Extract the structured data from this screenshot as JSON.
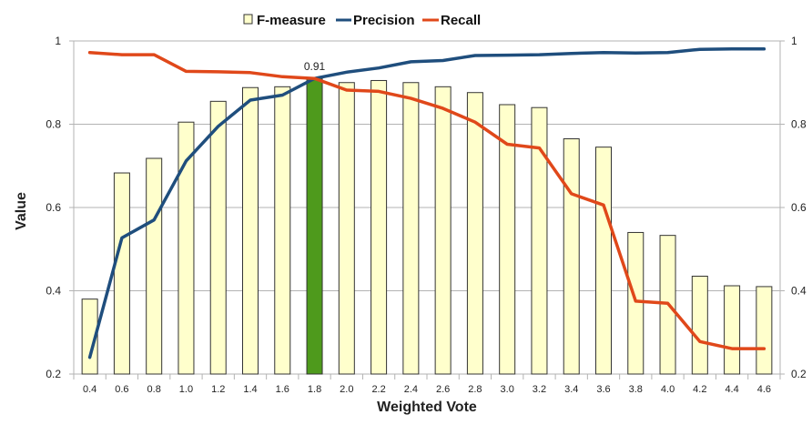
{
  "chart_data": {
    "type": "bar",
    "title": "",
    "xlabel": "Weighted Vote",
    "ylabel": "Value",
    "ylim": [
      0.2,
      1.0
    ],
    "y_ticks": [
      "0.2",
      "0.4",
      "0.6",
      "0.8",
      "1"
    ],
    "categories": [
      "0.4",
      "0.6",
      "0.8",
      "1.0",
      "1.2",
      "1.4",
      "1.6",
      "1.8",
      "2.0",
      "2.2",
      "2.4",
      "2.6",
      "2.8",
      "3.0",
      "3.2",
      "3.4",
      "3.6",
      "3.8",
      "4.0",
      "4.2",
      "4.4",
      "4.6"
    ],
    "series": [
      {
        "name": "F-measure",
        "kind": "bar",
        "color": "#ffffcc",
        "border": "#333333",
        "highlight_index": 7,
        "highlight_color": "#4e9a1c",
        "values": [
          0.38,
          0.683,
          0.718,
          0.805,
          0.855,
          0.888,
          0.89,
          0.91,
          0.9,
          0.905,
          0.9,
          0.89,
          0.876,
          0.847,
          0.84,
          0.765,
          0.745,
          0.54,
          0.533,
          0.435,
          0.412,
          0.41
        ]
      },
      {
        "name": "Precision",
        "kind": "line",
        "color": "#1f4e7d",
        "values": [
          0.24,
          0.527,
          0.57,
          0.712,
          0.795,
          0.858,
          0.87,
          0.91,
          0.925,
          0.935,
          0.95,
          0.953,
          0.965,
          0.966,
          0.967,
          0.97,
          0.972,
          0.971,
          0.972,
          0.98,
          0.981,
          0.981
        ]
      },
      {
        "name": "Recall",
        "kind": "line",
        "color": "#e0481a",
        "values": [
          0.972,
          0.967,
          0.967,
          0.927,
          0.926,
          0.924,
          0.914,
          0.91,
          0.882,
          0.879,
          0.862,
          0.838,
          0.805,
          0.752,
          0.743,
          0.633,
          0.606,
          0.375,
          0.37,
          0.278,
          0.261,
          0.261
        ]
      }
    ],
    "annotations": [
      {
        "text": "0.91",
        "category": "1.8",
        "value": 0.91
      }
    ]
  }
}
